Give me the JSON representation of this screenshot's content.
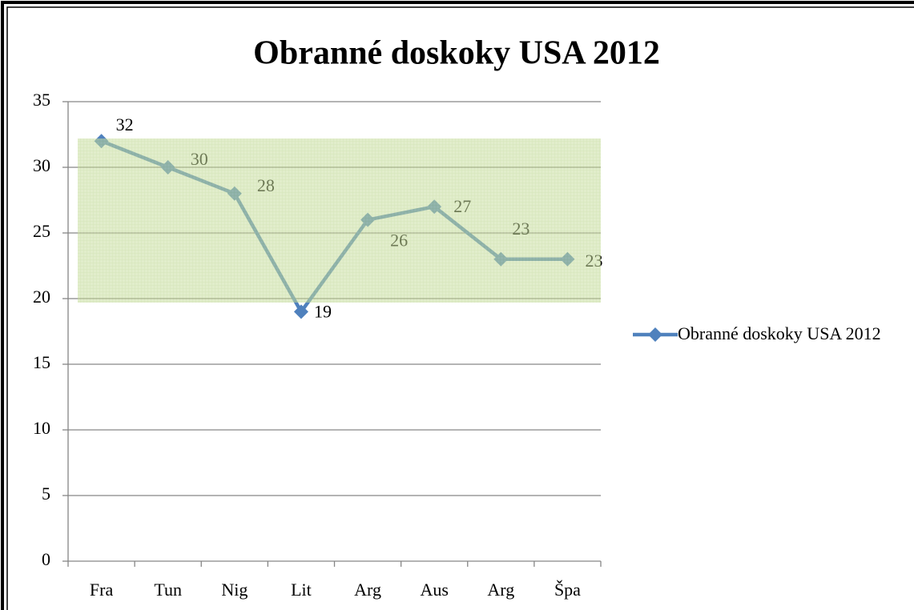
{
  "chart_data": {
    "type": "line",
    "title": "Obranné doskoky USA 2012",
    "categories": [
      "Fra",
      "Tun",
      "Nig",
      "Lit",
      "Arg",
      "Aus",
      "Arg",
      "Špa"
    ],
    "series": [
      {
        "name": "Obranné doskoky USA 2012",
        "color": "#4f81bd",
        "values": [
          32,
          30,
          28,
          19,
          26,
          27,
          23,
          23
        ]
      }
    ],
    "ylim": [
      0,
      35
    ],
    "yticks": [
      0,
      5,
      10,
      15,
      20,
      25,
      30,
      35
    ],
    "grid": true,
    "legend": "right"
  }
}
